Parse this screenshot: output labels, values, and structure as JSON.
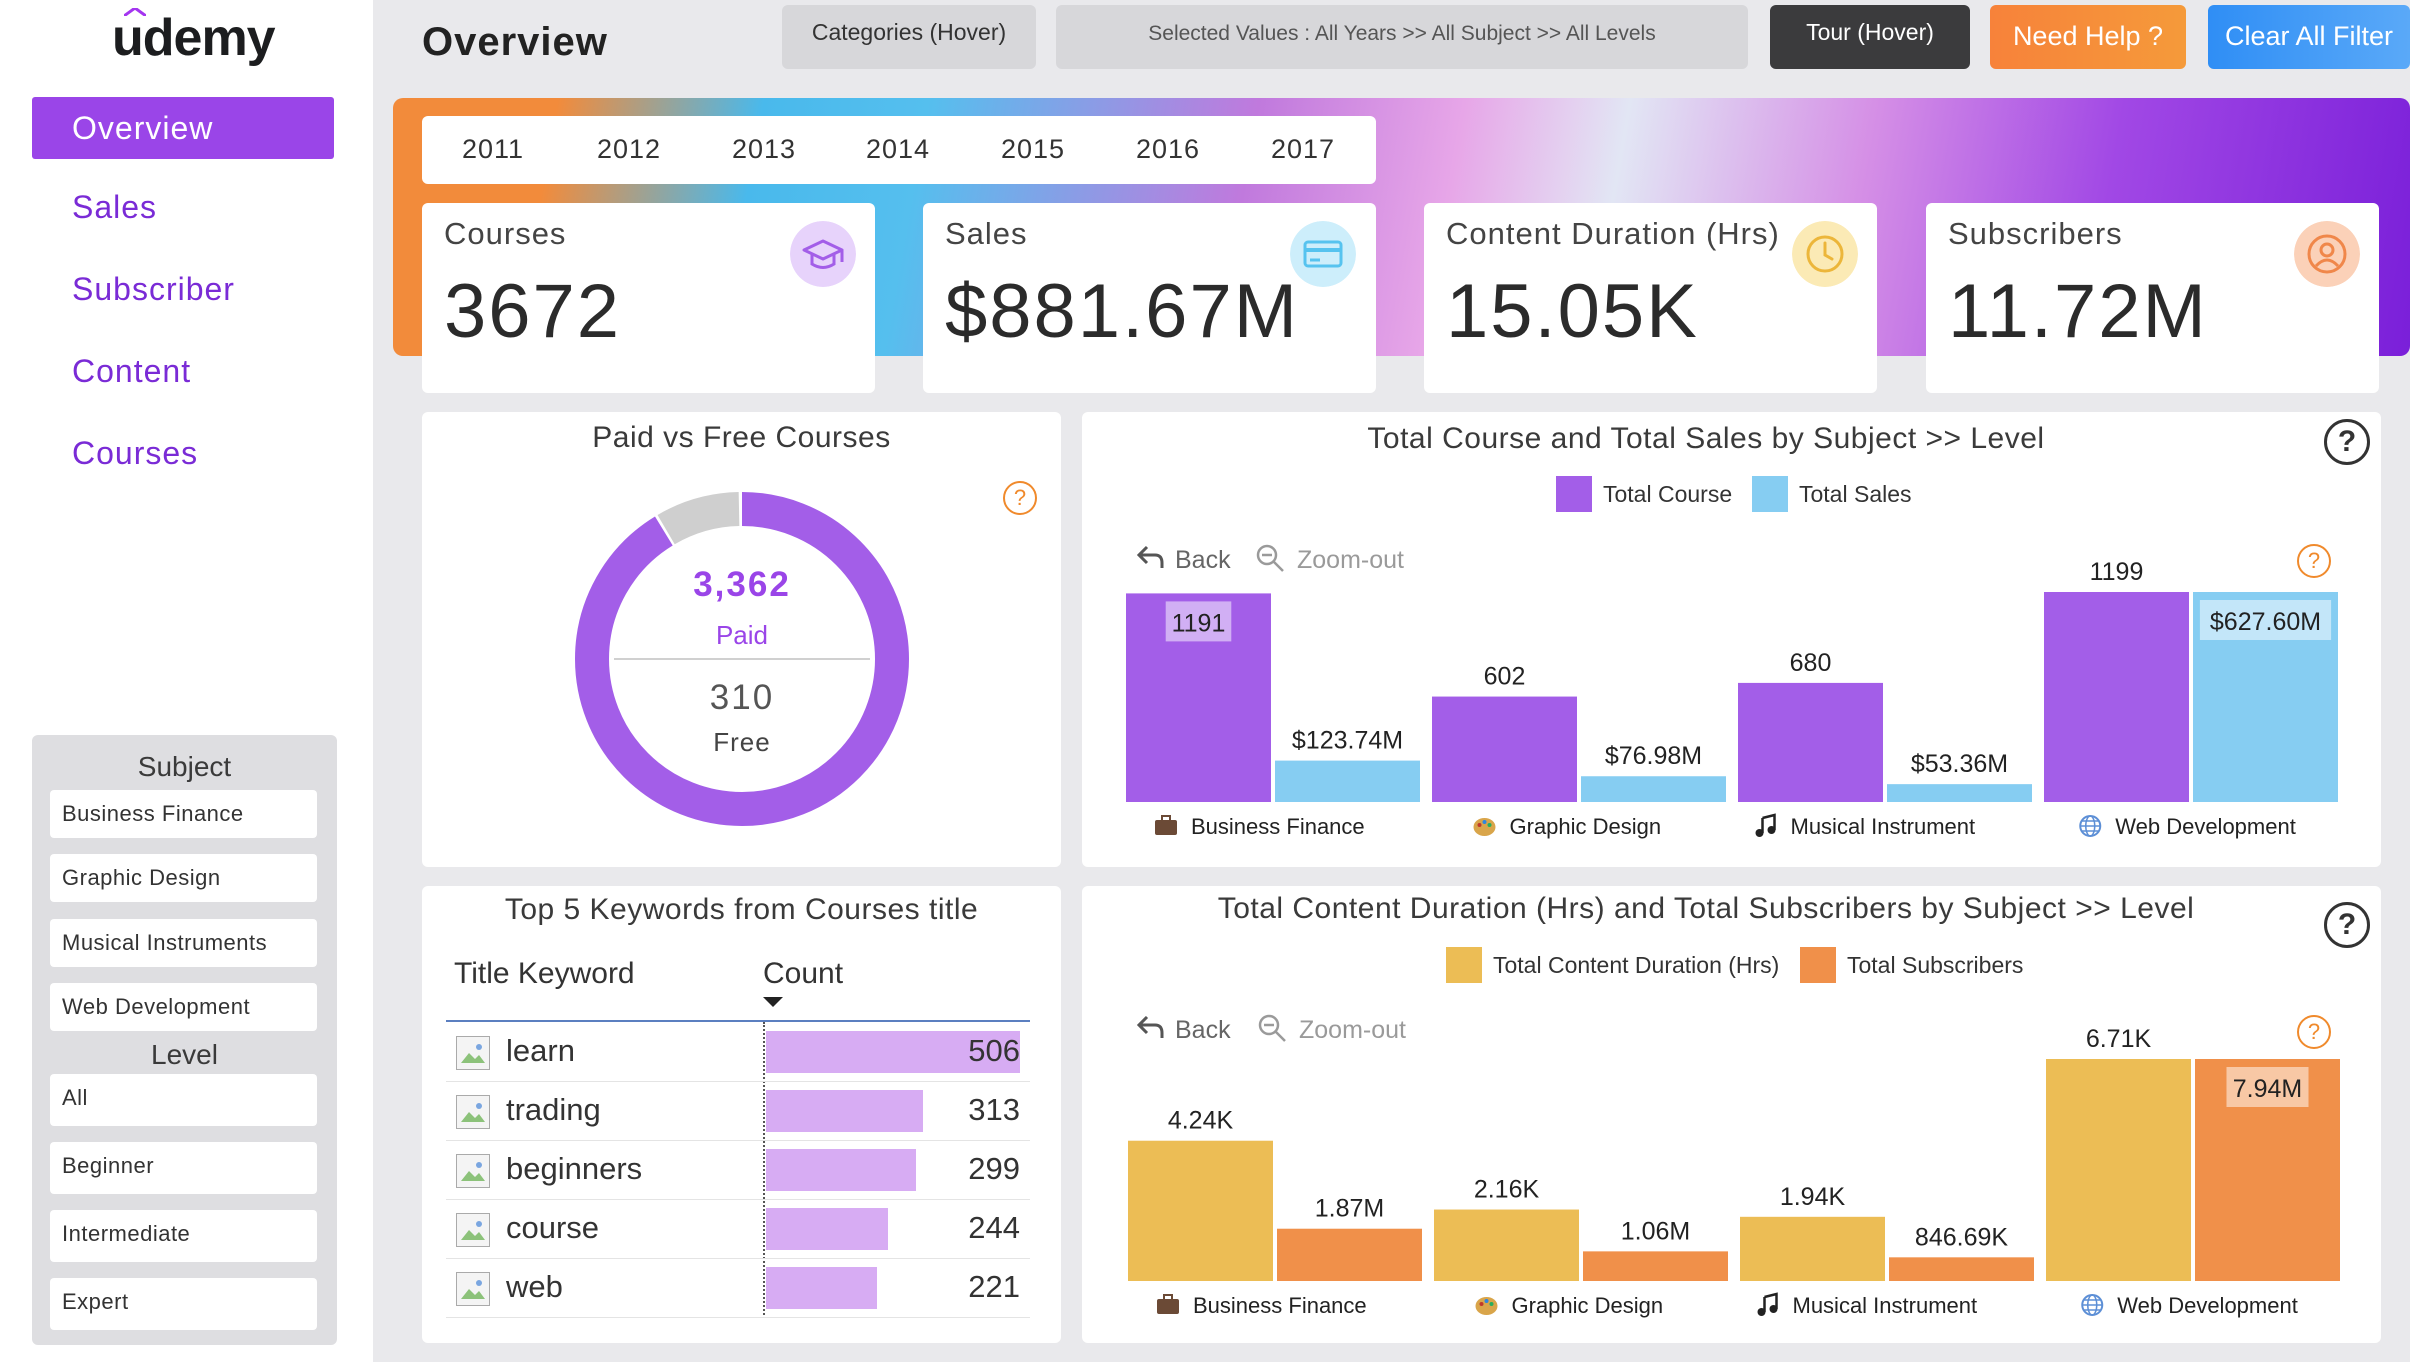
{
  "app": {
    "logo": "udemy",
    "page_title": "Overview"
  },
  "sidebar": {
    "items": [
      {
        "label": "Overview",
        "active": true
      },
      {
        "label": "Sales"
      },
      {
        "label": "Subscriber"
      },
      {
        "label": "Content"
      },
      {
        "label": "Courses"
      }
    ]
  },
  "filters": {
    "subject_heading": "Subject",
    "subjects": [
      "Business Finance",
      "Graphic Design",
      "Musical Instruments",
      "Web Development"
    ],
    "level_heading": "Level",
    "levels": [
      "All",
      "Beginner",
      "Intermediate",
      "Expert"
    ]
  },
  "header": {
    "categories_label": "Categories (Hover)",
    "selected_values": "Selected Values : All Years >> All Subject >> All Levels",
    "tour_label": "Tour (Hover)",
    "help_label": "Need Help ?",
    "clear_label": "Clear All Filter"
  },
  "years": [
    "2011",
    "2012",
    "2013",
    "2014",
    "2015",
    "2016",
    "2017"
  ],
  "kpis": [
    {
      "label": "Courses",
      "value": "3672",
      "icon": "graduation-cap-icon",
      "color": "#a35ee8"
    },
    {
      "label": "Sales",
      "value": "$881.67M",
      "icon": "credit-card-icon",
      "color": "#56c3ef"
    },
    {
      "label": "Content Duration (Hrs)",
      "value": "15.05K",
      "icon": "clock-icon",
      "color": "#ecc04e"
    },
    {
      "label": "Subscribers",
      "value": "11.72M",
      "icon": "user-icon",
      "color": "#f0874a"
    }
  ],
  "paid_free": {
    "title": "Paid vs Free Courses",
    "paid_value": "3,362",
    "paid_label": "Paid",
    "free_value": "310",
    "free_label": "Free",
    "colors": {
      "paid": "#a35ee8",
      "free": "#cfcfcf"
    }
  },
  "controls": {
    "back": "Back",
    "zoom_out": "Zoom-out"
  },
  "chart_data": [
    {
      "type": "bar",
      "title": "Total Course and Total Sales by Subject >> Level",
      "categories": [
        "Business Finance",
        "Graphic Design",
        "Musical Instrument",
        "Web Development"
      ],
      "category_icons": [
        "briefcase-icon",
        "palette-icon",
        "music-note-icon",
        "globe-icon"
      ],
      "series": [
        {
          "name": "Total Course",
          "values": [
            1191,
            602,
            680,
            1199
          ],
          "labels": [
            "1191",
            "602",
            "680",
            "1199"
          ],
          "color": "#a35ee8"
        },
        {
          "name": "Total Sales",
          "values": [
            123.74,
            76.98,
            53.36,
            627.6
          ],
          "labels": [
            "$123.74M",
            "$76.98M",
            "$53.36M",
            "$627.60M"
          ],
          "color": "#86cdf2"
        }
      ],
      "highlight": {
        "Total Course": 0,
        "Total Sales": 3
      }
    },
    {
      "type": "bar",
      "title": "Total Content Duration (Hrs) and Total Subscribers by Subject >> Level",
      "categories": [
        "Business Finance",
        "Graphic Design",
        "Musical Instrument",
        "Web Development"
      ],
      "category_icons": [
        "briefcase-icon",
        "palette-icon",
        "music-note-icon",
        "globe-icon"
      ],
      "series": [
        {
          "name": "Total Content Duration (Hrs)",
          "values": [
            4.24,
            2.16,
            1.94,
            6.71
          ],
          "labels": [
            "4.24K",
            "2.16K",
            "1.94K",
            "6.71K"
          ],
          "color": "#ecbd55"
        },
        {
          "name": "Total Subscribers",
          "values": [
            1.87,
            1.06,
            0.84669,
            7.94
          ],
          "labels": [
            "1.87M",
            "1.06M",
            "846.69K",
            "7.94M"
          ],
          "color": "#f0904a"
        }
      ],
      "highlight": {
        "Total Subscribers": 3
      }
    }
  ],
  "keywords": {
    "title": "Top 5 Keywords from Courses title",
    "col_keyword": "Title Keyword",
    "col_count": "Count",
    "rows": [
      {
        "keyword": "learn",
        "count": 506
      },
      {
        "keyword": "trading",
        "count": 313
      },
      {
        "keyword": "beginners",
        "count": 299
      },
      {
        "keyword": "course",
        "count": 244
      },
      {
        "keyword": "web",
        "count": 221
      }
    ],
    "bar_color": "#d7acf3"
  }
}
